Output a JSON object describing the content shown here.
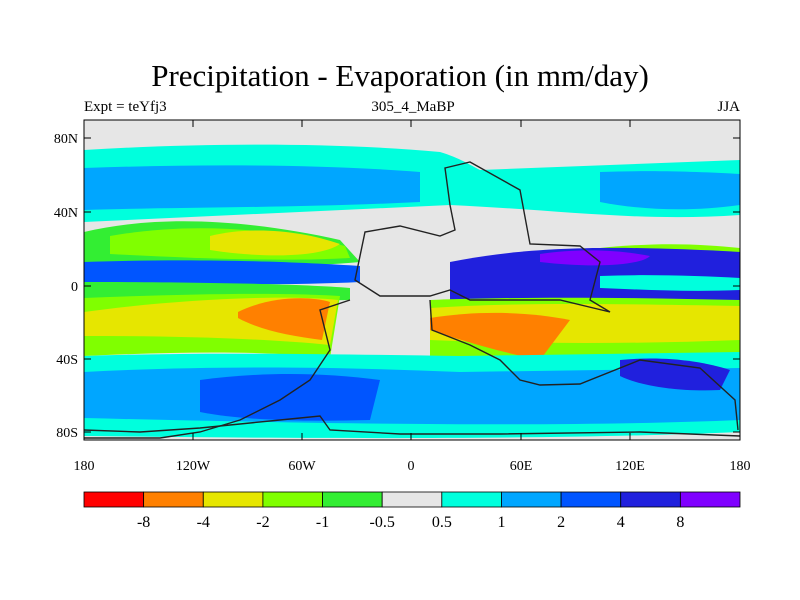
{
  "title": "Precipitation - Evaporation (in mm/day)",
  "subtitle_left": "Expt = teYfj3",
  "subtitle_center": "305_4_MaBP",
  "subtitle_right": "JJA",
  "y_axis_labels": [
    "80N",
    "40N",
    "0",
    "40S",
    "80S"
  ],
  "x_axis_labels": [
    "180",
    "120W",
    "60W",
    "0",
    "60E",
    "120E",
    "180"
  ],
  "colorbar": {
    "labels": [
      "-8",
      "-4",
      "-2",
      "-1",
      "-0.5",
      "0.5",
      "1",
      "2",
      "4",
      "8"
    ],
    "colors": [
      "#ff0000",
      "#ff8000",
      "#e6e600",
      "#80ff00",
      "#33ee33",
      "#e6e6e6",
      "#00ffdd",
      "#00a6ff",
      "#0055ff",
      "#2020dd",
      "#8000ff"
    ]
  },
  "map_colors": {
    "neutral": "#e6e6e6",
    "light_cyan": "#00ffdd",
    "sky": "#00a6ff",
    "blue": "#0055ff",
    "deep_blue": "#2020dd",
    "violet": "#8000ff",
    "green": "#33ee33",
    "lime": "#80ff00",
    "yellow": "#e6e600",
    "orange": "#ff8000"
  }
}
